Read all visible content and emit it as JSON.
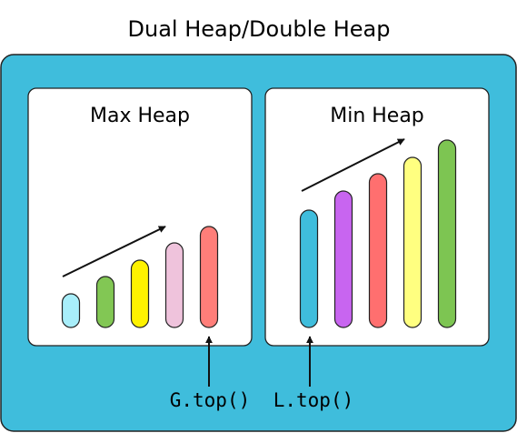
{
  "title": "Dual Heap/Double Heap",
  "colors": {
    "background": "#ffffff",
    "container": "#3FBDDC",
    "panel": "#ffffff",
    "stroke": "#222222"
  },
  "panels": [
    {
      "key": "max",
      "title": "Max Heap",
      "bars": [
        {
          "color": "#A8EEFA"
        },
        {
          "color": "#82C754"
        },
        {
          "color": "#FFF200"
        },
        {
          "color": "#EFC3DC"
        },
        {
          "color": "#FF7E79"
        }
      ]
    },
    {
      "key": "min",
      "title": "Min Heap",
      "bars": [
        {
          "color": "#3FBDDC"
        },
        {
          "color": "#C865F0"
        },
        {
          "color": "#FF6F6F"
        },
        {
          "color": "#FFFF80"
        },
        {
          "color": "#7DC552"
        }
      ]
    }
  ],
  "pointers": {
    "max_top": "G.top()",
    "min_top": "L.top()"
  }
}
